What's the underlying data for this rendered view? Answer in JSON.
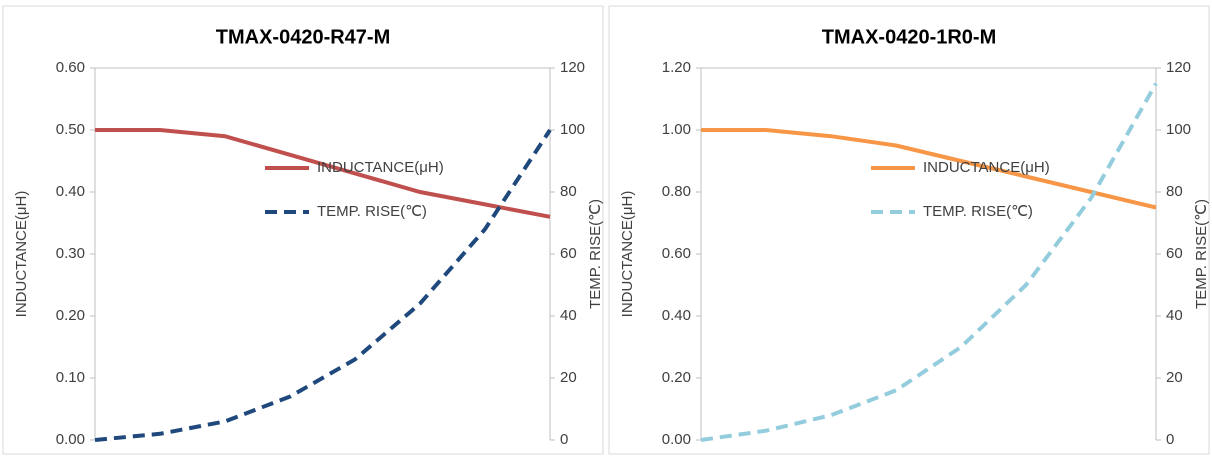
{
  "chart_data": [
    {
      "type": "line",
      "title": "TMAX-0420-R47-M",
      "ylabel": "INDUCTANCE(μH)",
      "y2label": "TEMP. RISE(℃)",
      "categories": [
        null,
        null,
        null,
        null,
        null,
        null,
        null,
        null
      ],
      "series": [
        {
          "name": "INDUCTANCE(μH)",
          "color": "#c0504d",
          "values": [
            0.5,
            0.5,
            0.49,
            0.46,
            0.43,
            0.4,
            0.38,
            0.36
          ]
        },
        {
          "name": "TEMP. RISE(℃)",
          "color": "#1f497d",
          "axis": "y2",
          "values": [
            0,
            2,
            6,
            14,
            26,
            44,
            68,
            100
          ]
        }
      ],
      "ylim": [
        0,
        0.6
      ],
      "yticks": [
        {
          "value": 0,
          "label": "0.00"
        },
        {
          "value": 0.1,
          "label": "0.10"
        },
        {
          "value": 0.2,
          "label": "0.20"
        },
        {
          "value": 0.3,
          "label": "0.30"
        },
        {
          "value": 0.4,
          "label": "0.40"
        },
        {
          "value": 0.5,
          "label": "0.50"
        },
        {
          "value": 0.6,
          "label": "0.60"
        }
      ],
      "y2lim": [
        0,
        120
      ],
      "y2ticks": [
        0,
        20,
        40,
        60,
        80,
        100,
        120
      ],
      "legend": "right",
      "grid": false
    },
    {
      "type": "line",
      "title": "TMAX-0420-1R0-M",
      "ylabel": "INDUCTANCE(μH)",
      "y2label": "TEMP. RISE(℃)",
      "categories": [
        null,
        null,
        null,
        null,
        null,
        null,
        null,
        null
      ],
      "series": [
        {
          "name": "INDUCTANCE(μH)",
          "color": "#f79646",
          "values": [
            1.0,
            1.0,
            0.98,
            0.95,
            0.9,
            0.85,
            0.8,
            0.75
          ]
        },
        {
          "name": "TEMP. RISE(℃)",
          "color": "#93cddd",
          "axis": "y2",
          "values": [
            0,
            3,
            8,
            16,
            30,
            50,
            78,
            115
          ]
        }
      ],
      "ylim": [
        0,
        1.2
      ],
      "yticks": [
        {
          "value": 0,
          "label": "0.00"
        },
        {
          "value": 0.2,
          "label": "0.20"
        },
        {
          "value": 0.4,
          "label": "0.40"
        },
        {
          "value": 0.6,
          "label": "0.60"
        },
        {
          "value": 0.8,
          "label": "0.80"
        },
        {
          "value": 1.0,
          "label": "1.00"
        },
        {
          "value": 1.2,
          "label": "1.20"
        }
      ],
      "y2lim": [
        0,
        120
      ],
      "y2ticks": [
        0,
        20,
        40,
        60,
        80,
        100,
        120
      ],
      "legend": "right",
      "grid": false
    }
  ]
}
